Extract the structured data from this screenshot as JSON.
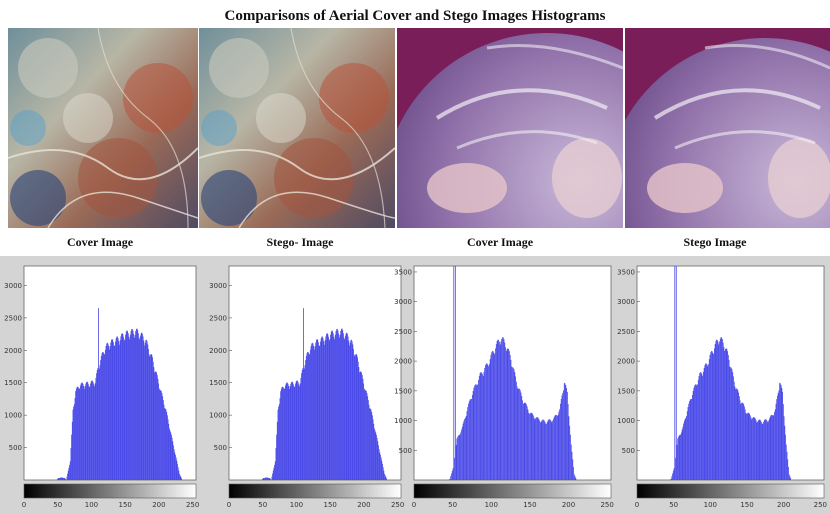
{
  "figure_title": "Comparisons of Aerial Cover and Stego Images Histograms",
  "images": [
    {
      "caption": "Cover Image",
      "subject": "aerial-landscape"
    },
    {
      "caption": "Stego- Image",
      "subject": "aerial-landscape"
    },
    {
      "caption": "Cover Image",
      "subject": "earth-globe"
    },
    {
      "caption": "Stego Image",
      "subject": "earth-globe"
    }
  ],
  "colors": {
    "bar": "#4a4ae8",
    "panel_bg": "#d4d4d4",
    "plot_bg": "#ffffff"
  },
  "chart_data": [
    {
      "type": "bar",
      "xlim": [
        0,
        255
      ],
      "ylim": [
        0,
        3300
      ],
      "x_ticks": [
        0,
        50,
        100,
        150,
        200,
        250
      ],
      "y_ticks": [
        500,
        1000,
        1500,
        2000,
        2500,
        3000
      ],
      "profile": [
        [
          0,
          0
        ],
        [
          48,
          0
        ],
        [
          50,
          30
        ],
        [
          55,
          40
        ],
        [
          60,
          30
        ],
        [
          62,
          0
        ],
        [
          68,
          300
        ],
        [
          72,
          1100
        ],
        [
          76,
          1400
        ],
        [
          82,
          1500
        ],
        [
          95,
          1520
        ],
        [
          105,
          1550
        ],
        [
          110,
          1800
        ],
        [
          118,
          2050
        ],
        [
          125,
          2150
        ],
        [
          135,
          2200
        ],
        [
          150,
          2300
        ],
        [
          165,
          2350
        ],
        [
          172,
          2300
        ],
        [
          180,
          2200
        ],
        [
          190,
          1900
        ],
        [
          200,
          1500
        ],
        [
          210,
          1100
        ],
        [
          218,
          700
        ],
        [
          225,
          350
        ],
        [
          230,
          100
        ],
        [
          234,
          0
        ],
        [
          255,
          0
        ]
      ],
      "spikes": [
        [
          110,
          2650
        ]
      ]
    },
    {
      "type": "bar",
      "xlim": [
        0,
        255
      ],
      "ylim": [
        0,
        3300
      ],
      "x_ticks": [
        0,
        50,
        100,
        150,
        200,
        250
      ],
      "y_ticks": [
        500,
        1000,
        1500,
        2000,
        2500,
        3000
      ],
      "profile": [
        [
          0,
          0
        ],
        [
          48,
          0
        ],
        [
          50,
          30
        ],
        [
          55,
          40
        ],
        [
          60,
          30
        ],
        [
          62,
          0
        ],
        [
          68,
          300
        ],
        [
          72,
          1100
        ],
        [
          76,
          1400
        ],
        [
          82,
          1500
        ],
        [
          95,
          1520
        ],
        [
          105,
          1550
        ],
        [
          110,
          1800
        ],
        [
          118,
          2050
        ],
        [
          125,
          2150
        ],
        [
          135,
          2200
        ],
        [
          150,
          2300
        ],
        [
          165,
          2350
        ],
        [
          172,
          2300
        ],
        [
          180,
          2200
        ],
        [
          190,
          1900
        ],
        [
          200,
          1500
        ],
        [
          210,
          1100
        ],
        [
          218,
          700
        ],
        [
          225,
          350
        ],
        [
          230,
          100
        ],
        [
          234,
          0
        ],
        [
          255,
          0
        ]
      ],
      "spikes": [
        [
          110,
          2650
        ]
      ]
    },
    {
      "type": "bar",
      "xlim": [
        0,
        255
      ],
      "ylim": [
        0,
        3600
      ],
      "x_ticks": [
        0,
        50,
        100,
        150,
        200,
        250
      ],
      "y_ticks": [
        500,
        1000,
        1500,
        2000,
        2500,
        3000,
        3500
      ],
      "profile": [
        [
          0,
          0
        ],
        [
          44,
          0
        ],
        [
          46,
          20
        ],
        [
          50,
          200
        ],
        [
          55,
          700
        ],
        [
          62,
          900
        ],
        [
          68,
          1200
        ],
        [
          75,
          1500
        ],
        [
          85,
          1800
        ],
        [
          95,
          2000
        ],
        [
          105,
          2300
        ],
        [
          112,
          2450
        ],
        [
          118,
          2350
        ],
        [
          125,
          2100
        ],
        [
          132,
          1700
        ],
        [
          140,
          1400
        ],
        [
          150,
          1150
        ],
        [
          160,
          1050
        ],
        [
          170,
          1000
        ],
        [
          180,
          1050
        ],
        [
          188,
          1200
        ],
        [
          194,
          1700
        ],
        [
          198,
          1500
        ],
        [
          203,
          600
        ],
        [
          207,
          100
        ],
        [
          210,
          0
        ],
        [
          255,
          0
        ]
      ],
      "spikes": [
        [
          51,
          3600
        ],
        [
          53,
          3600
        ]
      ]
    },
    {
      "type": "bar",
      "xlim": [
        0,
        255
      ],
      "ylim": [
        0,
        3600
      ],
      "x_ticks": [
        0,
        50,
        100,
        150,
        200,
        250
      ],
      "y_ticks": [
        500,
        1000,
        1500,
        2000,
        2500,
        3000,
        3500
      ],
      "profile": [
        [
          0,
          0
        ],
        [
          44,
          0
        ],
        [
          46,
          20
        ],
        [
          50,
          200
        ],
        [
          55,
          700
        ],
        [
          62,
          900
        ],
        [
          68,
          1200
        ],
        [
          75,
          1500
        ],
        [
          85,
          1800
        ],
        [
          95,
          2000
        ],
        [
          105,
          2300
        ],
        [
          112,
          2450
        ],
        [
          118,
          2350
        ],
        [
          125,
          2100
        ],
        [
          132,
          1700
        ],
        [
          140,
          1400
        ],
        [
          150,
          1150
        ],
        [
          160,
          1050
        ],
        [
          170,
          1000
        ],
        [
          180,
          1050
        ],
        [
          188,
          1200
        ],
        [
          194,
          1700
        ],
        [
          198,
          1500
        ],
        [
          203,
          600
        ],
        [
          207,
          100
        ],
        [
          210,
          0
        ],
        [
          255,
          0
        ]
      ],
      "spikes": [
        [
          51,
          3600
        ],
        [
          53,
          3600
        ]
      ]
    }
  ]
}
